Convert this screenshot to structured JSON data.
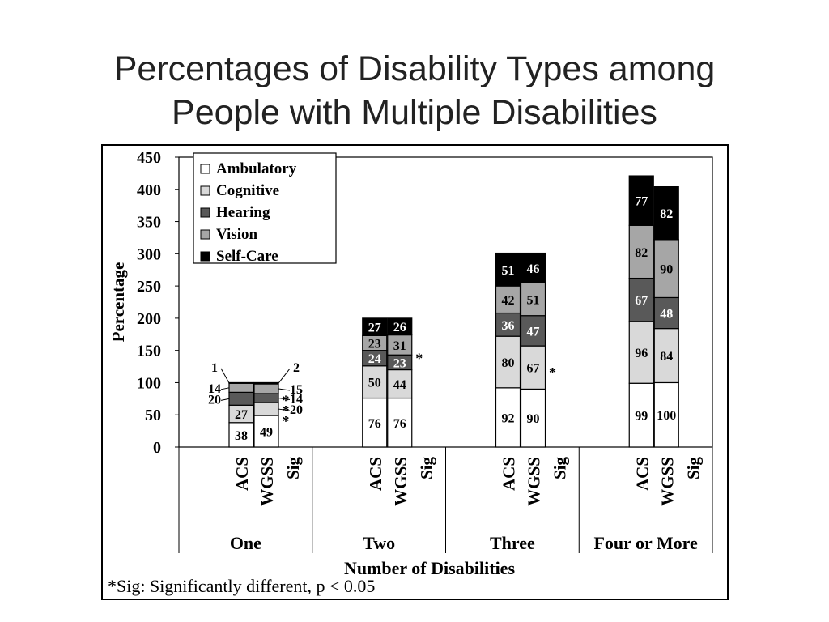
{
  "slide": {
    "title_line1": "Percentages of Disability Types among",
    "title_line2": "People with Multiple Disabilities"
  },
  "footnote": "*Sig: Significantly different,  p < 0.05",
  "chart_data": {
    "type": "bar",
    "stacked": true,
    "title": "",
    "xlabel": "Number of Disabilities",
    "ylabel": "Percentage",
    "ylim": [
      0,
      450
    ],
    "yticks": [
      0,
      50,
      100,
      150,
      200,
      250,
      300,
      350,
      400,
      450
    ],
    "legend_position": "top-left",
    "subcategories": [
      "ACS",
      "WGSS",
      "Sig"
    ],
    "groups": [
      {
        "label": "One",
        "bars": [
          {
            "name": "ACS",
            "values": [
              38,
              27,
              20,
              14,
              1
            ]
          },
          {
            "name": "WGSS",
            "values": [
              49,
              20,
              14,
              15,
              2
            ]
          }
        ],
        "sig_marks": [
          "*",
          "*",
          "*"
        ]
      },
      {
        "label": "Two",
        "bars": [
          {
            "name": "ACS",
            "values": [
              76,
              50,
              24,
              23,
              27
            ]
          },
          {
            "name": "WGSS",
            "values": [
              76,
              44,
              23,
              31,
              26
            ]
          }
        ],
        "sig_marks": [
          "*"
        ]
      },
      {
        "label": "Three",
        "bars": [
          {
            "name": "ACS",
            "values": [
              92,
              80,
              36,
              42,
              51
            ]
          },
          {
            "name": "WGSS",
            "values": [
              90,
              67,
              47,
              51,
              46
            ]
          }
        ],
        "sig_marks": [
          "*"
        ]
      },
      {
        "label": "Four or More",
        "bars": [
          {
            "name": "ACS",
            "values": [
              99,
              96,
              67,
              82,
              77
            ]
          },
          {
            "name": "WGSS",
            "values": [
              100,
              84,
              48,
              90,
              82
            ]
          }
        ],
        "sig_marks": []
      }
    ],
    "series": [
      {
        "name": "Ambulatory",
        "color": "#ffffff",
        "text_color": "#000000"
      },
      {
        "name": "Cognitive",
        "color": "#d9d9d9",
        "text_color": "#000000"
      },
      {
        "name": "Hearing",
        "color": "#595959",
        "text_color": "#ffffff"
      },
      {
        "name": "Vision",
        "color": "#a6a6a6",
        "text_color": "#000000"
      },
      {
        "name": "Self-Care",
        "color": "#000000",
        "text_color": "#ffffff"
      }
    ]
  }
}
